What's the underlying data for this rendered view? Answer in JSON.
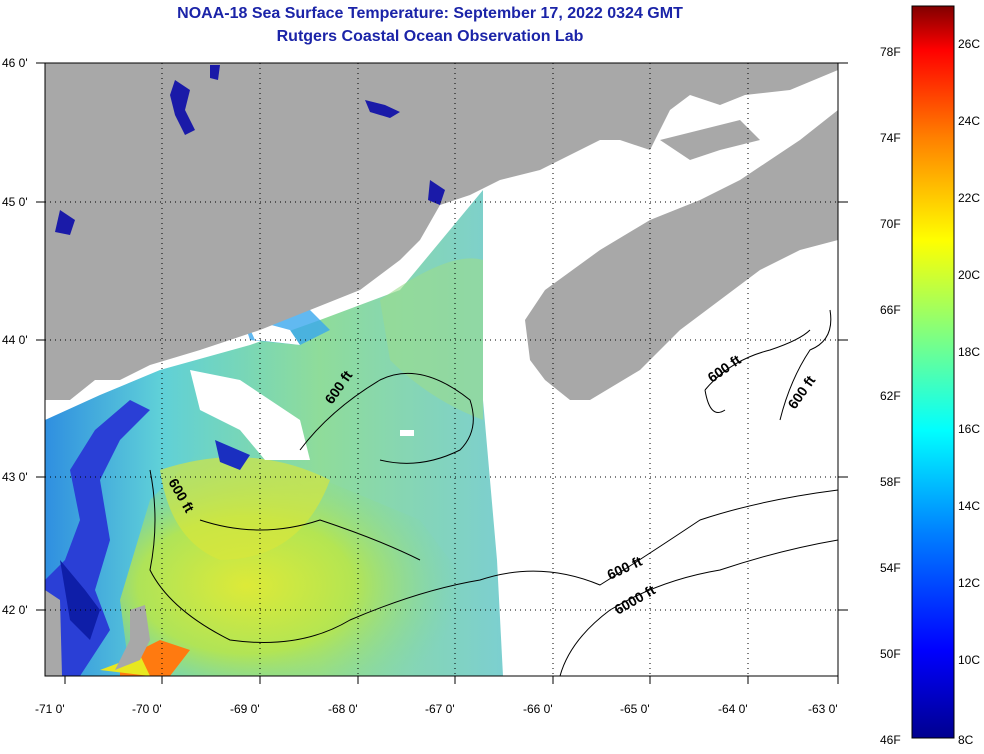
{
  "title_line1": "NOAA-18 Sea Surface Temperature:  September 17, 2022 0324 GMT",
  "title_line2": "Rutgers Coastal Ocean Observation Lab",
  "lat_ticks": [
    "46 0'",
    "45 0'",
    "44 0'",
    "43 0'",
    "42 0'"
  ],
  "lon_ticks": [
    "-71 0'",
    "-70 0'",
    "-69 0'",
    "-68 0'",
    "-67 0'",
    "-66 0'",
    "-65 0'",
    "-64 0'",
    "-63 0'"
  ],
  "contour_labels": [
    "600 ft",
    "600 ft",
    "600 ft",
    "600 ft",
    "600 ft",
    "6000 ft"
  ],
  "colorbar": {
    "fahrenheit": [
      "78F",
      "74F",
      "70F",
      "66F",
      "62F",
      "58F",
      "54F",
      "50F",
      "46F"
    ],
    "celsius": [
      "26C",
      "24C",
      "22C",
      "20C",
      "18C",
      "16C",
      "14C",
      "12C",
      "10C",
      "8C"
    ]
  },
  "colors": {
    "land": "#a8a8a8",
    "title": "#1b24a8"
  }
}
